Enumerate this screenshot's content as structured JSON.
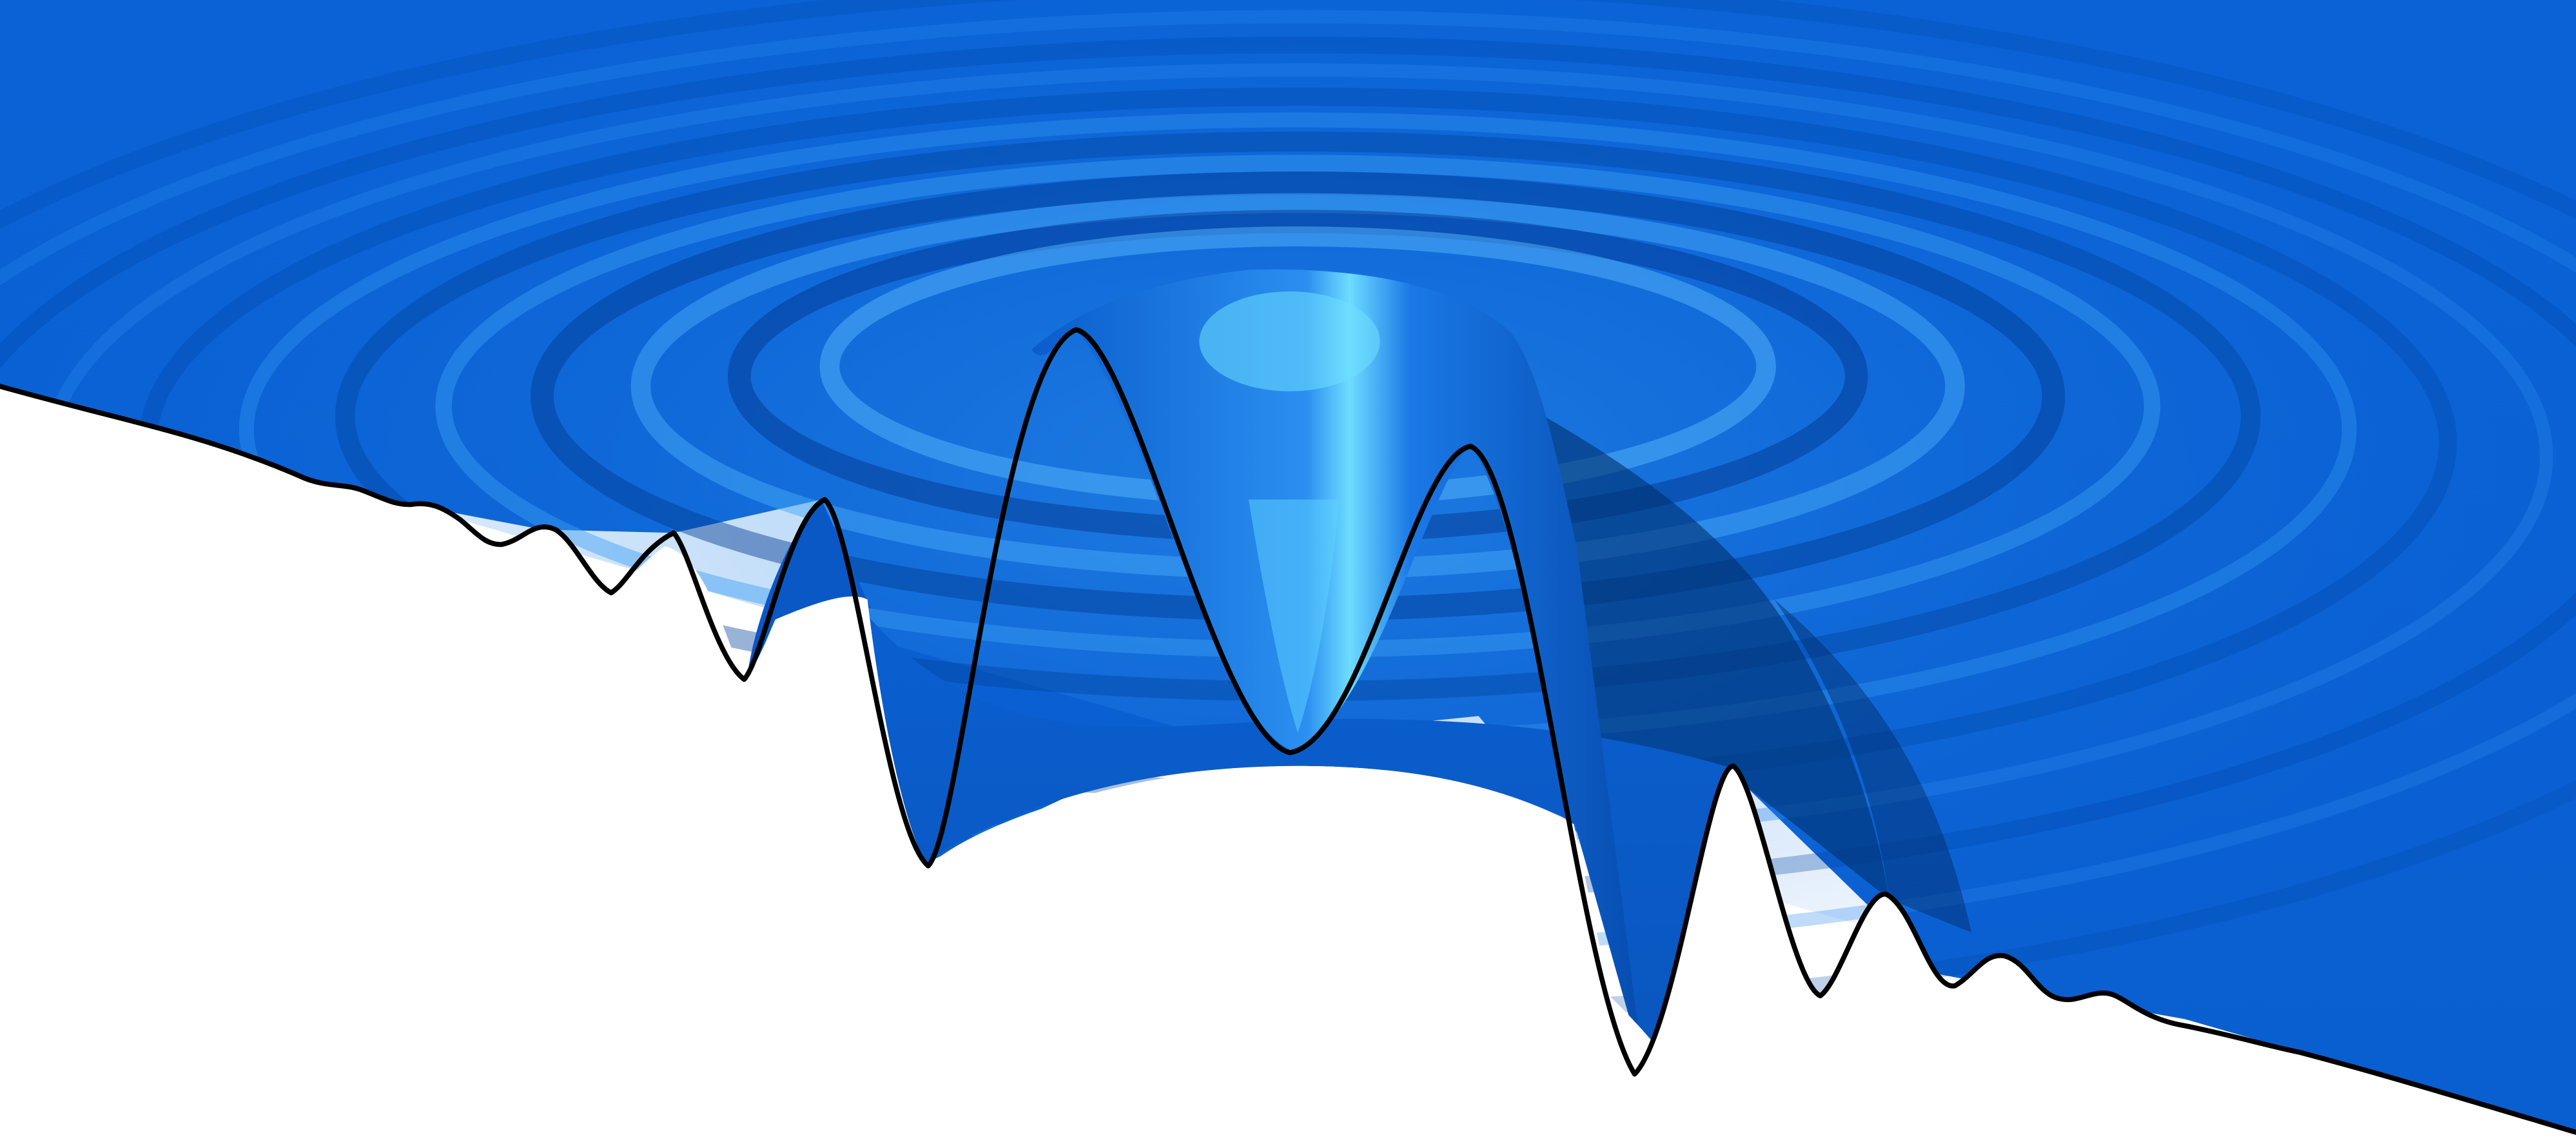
{
  "scene": {
    "subject": "3d-surface-plot",
    "colors": {
      "background": "#ffffff",
      "surface": "#0a62d6",
      "surface_dark": "#003a8c",
      "surface_mid": "#0d6fe0",
      "highlight": "#5fd6ff",
      "outline": "#000000"
    }
  }
}
